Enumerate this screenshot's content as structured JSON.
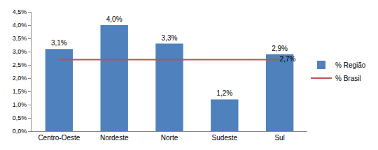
{
  "chart_data": {
    "type": "bar",
    "categories": [
      "Centro-Oeste",
      "Nordeste",
      "Norte",
      "Sudeste",
      "Sul"
    ],
    "series": [
      {
        "name": "% Região",
        "type": "bar",
        "color": "#4f81bd",
        "values": [
          3.1,
          4.0,
          3.3,
          1.2,
          2.9
        ],
        "value_labels": [
          "3,1%",
          "4,0%",
          "3,3%",
          "1,2%",
          "2,9%"
        ]
      },
      {
        "name": "% Brasil",
        "type": "line",
        "color": "#c0504d",
        "values": [
          2.7,
          2.7,
          2.7,
          2.7,
          2.7
        ],
        "value_labels": [
          null,
          null,
          null,
          null,
          "2,7%"
        ]
      }
    ],
    "ylim": [
      0,
      4.5
    ],
    "yticks": [
      {
        "value": 0,
        "label": "0,0%"
      },
      {
        "value": 0.5,
        "label": "0,5%"
      },
      {
        "value": 1,
        "label": "1,0%"
      },
      {
        "value": 1.5,
        "label": "1,5%"
      },
      {
        "value": 2,
        "label": "2,0%"
      },
      {
        "value": 2.5,
        "label": "2,5%"
      },
      {
        "value": 3,
        "label": "3,0%"
      },
      {
        "value": 3.5,
        "label": "3,5%"
      },
      {
        "value": 4,
        "label": "4,0%"
      },
      {
        "value": 4.5,
        "label": "4,5%"
      }
    ],
    "grid": false,
    "legend": "right",
    "data_labels": true
  }
}
